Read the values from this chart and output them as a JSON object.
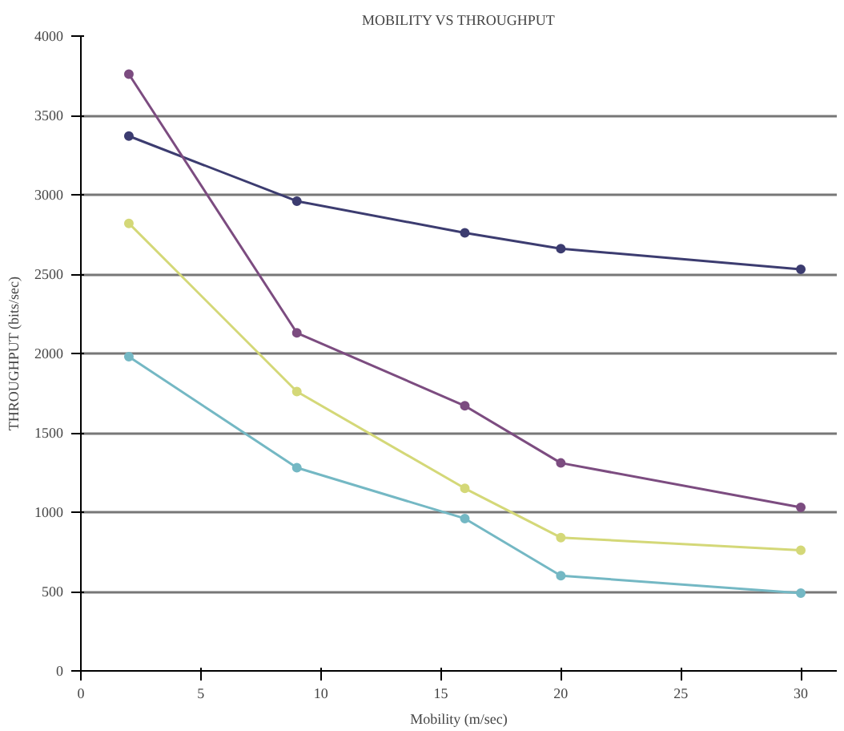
{
  "chart_data": {
    "type": "line",
    "title": "MOBILITY VS THROUGHPUT",
    "xlabel": "Mobility (m/sec)",
    "ylabel": "THROUGHPUT (bits/sec)",
    "x": [
      2,
      9,
      16,
      20,
      30
    ],
    "series": [
      {
        "color": "#3c3c70",
        "values": [
          3370,
          2960,
          2760,
          2660,
          2530
        ]
      },
      {
        "color": "#7c4c80",
        "values": [
          3760,
          2130,
          1670,
          1310,
          1030
        ]
      },
      {
        "color": "#d4d878",
        "values": [
          2820,
          1760,
          1150,
          840,
          760
        ]
      },
      {
        "color": "#74b8c4",
        "values": [
          1980,
          1280,
          960,
          600,
          490
        ]
      }
    ],
    "xlim": [
      0,
      31.5
    ],
    "xticks": [
      0,
      5,
      10,
      15,
      20,
      25,
      30
    ],
    "ylim": [
      0,
      4000
    ],
    "yticks": [
      0,
      500,
      1000,
      1500,
      2000,
      2500,
      3000,
      3500,
      4000
    ],
    "grid": "y",
    "marker": "circle",
    "line_style": "solid"
  }
}
